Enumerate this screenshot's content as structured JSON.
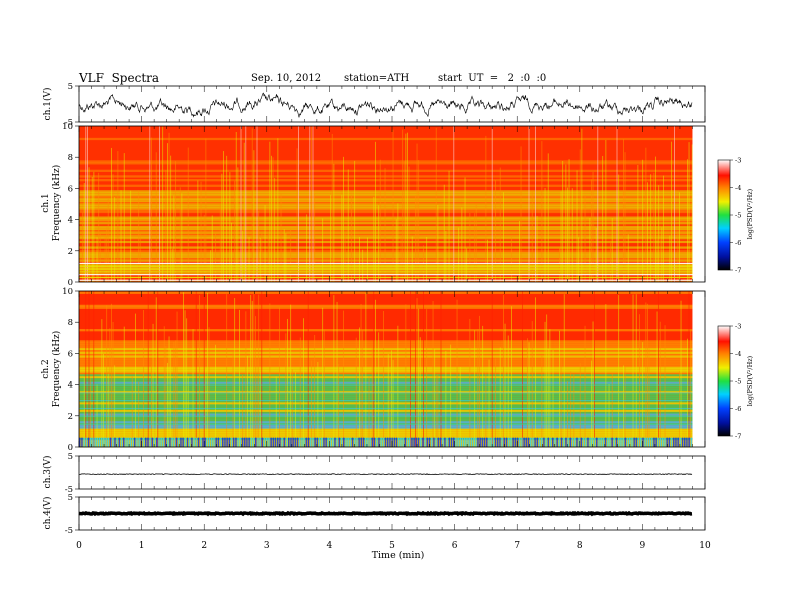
{
  "header": {
    "title": "VLF  Spectra",
    "date": "Sep. 10, 2012",
    "station": "station=ATH",
    "start": "start  UT  =   2  :0  :0"
  },
  "chart_data": [
    {
      "type": "line",
      "ylabel": "ch.1(V)",
      "ylim": [
        -5,
        5
      ],
      "yticks": [
        "5",
        "-5"
      ],
      "xlim": [
        0,
        10
      ],
      "description_series": "noisy waveform around 0 V, amplitude roughly ±3 V"
    },
    {
      "type": "heatmap",
      "ylabel": "ch.1\nFrequency (kHz)",
      "ylabel_line1": "ch.1",
      "ylabel_line2": "Frequency  (kHz)",
      "ylim": [
        0,
        10
      ],
      "yticks": [
        "0",
        "2",
        "4",
        "6",
        "8",
        "10"
      ],
      "xlim": [
        0,
        9.8
      ],
      "colorbar": {
        "label": "log(PSD(V²/Hz)",
        "range": [
          -7,
          -3
        ],
        "ticks": [
          "-3",
          "-4",
          "-5",
          "-6",
          "-7"
        ]
      }
    },
    {
      "type": "heatmap",
      "ylabel_line1": "ch.2",
      "ylabel_line2": "Frequency  (kHz)",
      "ylim": [
        0,
        10
      ],
      "yticks": [
        "0",
        "2",
        "4",
        "6",
        "8",
        "10"
      ],
      "xlim": [
        0,
        9.8
      ],
      "colorbar": {
        "label": "log(PSD(V²/Hz)",
        "range": [
          -7,
          -3
        ],
        "ticks": [
          "-3",
          "-4",
          "-5",
          "-6",
          "-7"
        ]
      }
    },
    {
      "type": "line",
      "ylabel": "ch.3(V)",
      "ylim": [
        -5,
        5
      ],
      "yticks": [
        "5",
        "-5"
      ],
      "value": -0.5
    },
    {
      "type": "line",
      "ylabel": "ch.4(V)",
      "ylim": [
        -5,
        5
      ],
      "yticks": [
        "5",
        "-5"
      ],
      "value": 0
    }
  ],
  "xaxis": {
    "label": "Time  (min)",
    "ticks": [
      "0",
      "1",
      "2",
      "3",
      "4",
      "5",
      "6",
      "7",
      "8",
      "9",
      "10"
    ],
    "range": [
      0,
      10
    ]
  },
  "colors": {
    "red": "#ff2000",
    "orange": "#ff9000",
    "yellow": "#e8f000",
    "green": "#30e060",
    "cyan": "#30d0ff",
    "blue": "#0030ff",
    "white": "#ffffff"
  }
}
